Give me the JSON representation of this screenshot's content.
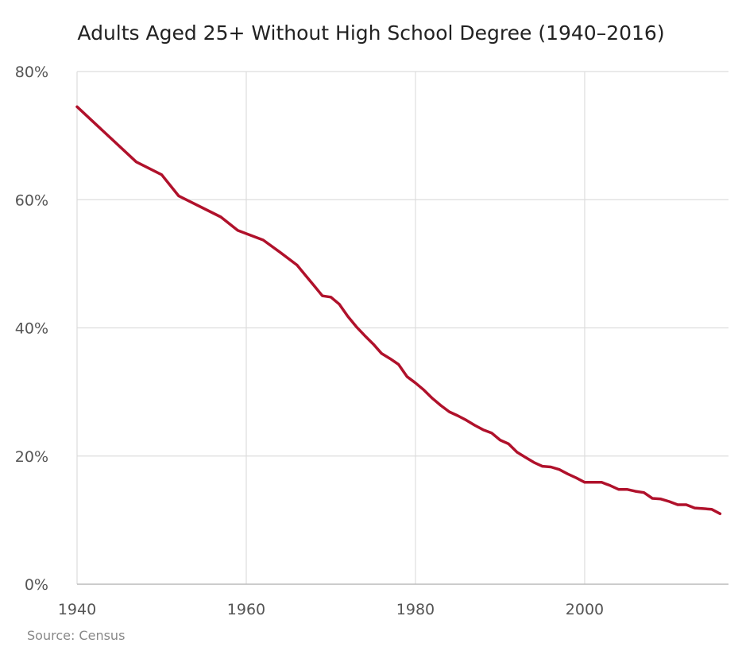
{
  "chart_data": {
    "type": "line",
    "title": "Adults Aged 25+ Without High School Degree (1940–2016)",
    "source": "Source: Census",
    "xlim": [
      1940,
      2017
    ],
    "ylim": [
      0,
      80
    ],
    "x_ticks": [
      1940,
      1960,
      1980,
      2000
    ],
    "x_tick_labels": [
      "1940",
      "1960",
      "1980",
      "2000"
    ],
    "y_ticks": [
      0,
      20,
      40,
      60,
      80
    ],
    "y_tick_labels": [
      "0%",
      "20%",
      "40%",
      "60%",
      "80%"
    ],
    "grid": true,
    "legend": "none",
    "line_color": "#b0112b",
    "series": [
      {
        "x": [
          1940,
          1947,
          1950,
          1952,
          1957,
          1959,
          1962,
          1964,
          1966,
          1967,
          1968,
          1969,
          1970,
          1971,
          1972,
          1973,
          1974,
          1975,
          1976,
          1977,
          1978,
          1979,
          1980,
          1981,
          1982,
          1983,
          1984,
          1985,
          1986,
          1987,
          1988,
          1989,
          1990,
          1991,
          1992,
          1993,
          1994,
          1995,
          1996,
          1997,
          1998,
          1999,
          2000,
          2001,
          2002,
          2003,
          2004,
          2005,
          2006,
          2007,
          2008,
          2009,
          2010,
          2011,
          2012,
          2013,
          2014,
          2015,
          2016
        ],
        "values": [
          74.5,
          65.9,
          63.9,
          60.6,
          57.3,
          55.2,
          53.7,
          51.8,
          49.8,
          48.2,
          46.6,
          45.0,
          44.8,
          43.7,
          41.8,
          40.2,
          38.8,
          37.5,
          36.0,
          35.2,
          34.3,
          32.4,
          31.4,
          30.3,
          29.0,
          27.9,
          26.9,
          26.3,
          25.6,
          24.8,
          24.1,
          23.6,
          22.5,
          21.9,
          20.6,
          19.8,
          19.0,
          18.4,
          18.3,
          17.9,
          17.2,
          16.6,
          15.9,
          15.9,
          15.9,
          15.4,
          14.8,
          14.8,
          14.5,
          14.3,
          13.4,
          13.3,
          12.9,
          12.4,
          12.4,
          11.9,
          11.8,
          11.7,
          11.0
        ]
      }
    ]
  }
}
